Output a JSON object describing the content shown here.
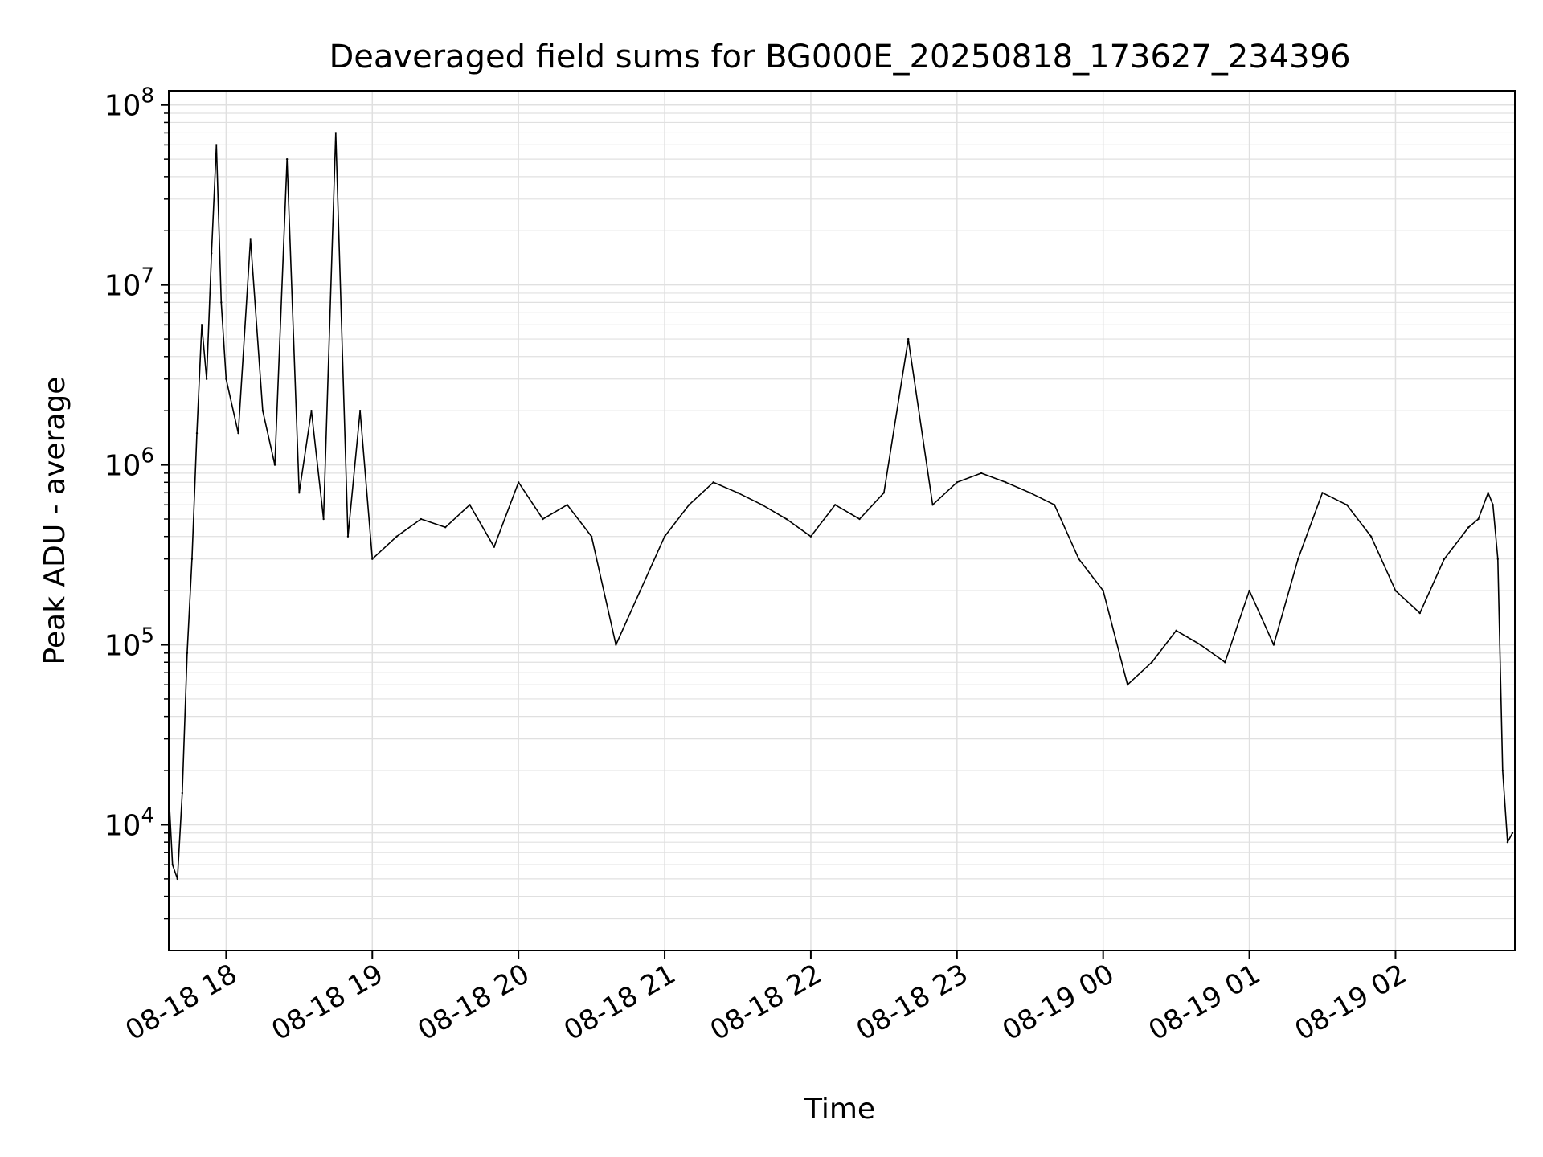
{
  "chart_data": {
    "type": "line",
    "title": "Deaveraged field sums for BG000E_20250818_173627_234396",
    "xlabel": "Time",
    "ylabel": "Peak ADU - average",
    "yscale": "log",
    "ylim": [
      2000,
      120000000
    ],
    "xlim": [
      "2025-08-18 17:36:27",
      "2025-08-19 02:49:00"
    ],
    "y_ticks": [
      {
        "value": 10000,
        "base": "10",
        "exp": "4"
      },
      {
        "value": 100000,
        "base": "10",
        "exp": "5"
      },
      {
        "value": 1000000,
        "base": "10",
        "exp": "6"
      },
      {
        "value": 10000000,
        "base": "10",
        "exp": "7"
      },
      {
        "value": 100000000,
        "base": "10",
        "exp": "8"
      }
    ],
    "x_ticks": [
      {
        "value": "2025-08-18 18:00",
        "label": "08-18 18"
      },
      {
        "value": "2025-08-18 19:00",
        "label": "08-18 19"
      },
      {
        "value": "2025-08-18 20:00",
        "label": "08-18 20"
      },
      {
        "value": "2025-08-18 21:00",
        "label": "08-18 21"
      },
      {
        "value": "2025-08-18 22:00",
        "label": "08-18 22"
      },
      {
        "value": "2025-08-18 23:00",
        "label": "08-18 23"
      },
      {
        "value": "2025-08-19 00:00",
        "label": "08-19 00"
      },
      {
        "value": "2025-08-19 01:00",
        "label": "08-19 01"
      },
      {
        "value": "2025-08-19 02:00",
        "label": "08-19 02"
      }
    ],
    "grid": true,
    "line_color": "#000000",
    "grid_color": "#e0e0e0",
    "series": [
      {
        "x": [
          "2025-08-18 17:36",
          "2025-08-18 17:38",
          "2025-08-18 17:40",
          "2025-08-18 17:42",
          "2025-08-18 17:44",
          "2025-08-18 17:46",
          "2025-08-18 17:48",
          "2025-08-18 17:50",
          "2025-08-18 17:52",
          "2025-08-18 17:54",
          "2025-08-18 17:56",
          "2025-08-18 17:58",
          "2025-08-18 18:00",
          "2025-08-18 18:05",
          "2025-08-18 18:10",
          "2025-08-18 18:15",
          "2025-08-18 18:20",
          "2025-08-18 18:25",
          "2025-08-18 18:30",
          "2025-08-18 18:35",
          "2025-08-18 18:40",
          "2025-08-18 18:45",
          "2025-08-18 18:50",
          "2025-08-18 18:55",
          "2025-08-18 19:00",
          "2025-08-18 19:10",
          "2025-08-18 19:20",
          "2025-08-18 19:30",
          "2025-08-18 19:40",
          "2025-08-18 19:50",
          "2025-08-18 20:00",
          "2025-08-18 20:10",
          "2025-08-18 20:20",
          "2025-08-18 20:30",
          "2025-08-18 20:40",
          "2025-08-18 20:50",
          "2025-08-18 21:00",
          "2025-08-18 21:10",
          "2025-08-18 21:20",
          "2025-08-18 21:30",
          "2025-08-18 21:40",
          "2025-08-18 21:50",
          "2025-08-18 22:00",
          "2025-08-18 22:10",
          "2025-08-18 22:20",
          "2025-08-18 22:30",
          "2025-08-18 22:40",
          "2025-08-18 22:50",
          "2025-08-18 23:00",
          "2025-08-18 23:10",
          "2025-08-18 23:20",
          "2025-08-18 23:30",
          "2025-08-18 23:40",
          "2025-08-18 23:50",
          "2025-08-19 00:00",
          "2025-08-19 00:10",
          "2025-08-19 00:20",
          "2025-08-19 00:30",
          "2025-08-19 00:40",
          "2025-08-19 00:50",
          "2025-08-19 01:00",
          "2025-08-19 01:10",
          "2025-08-19 01:20",
          "2025-08-19 01:30",
          "2025-08-19 01:40",
          "2025-08-19 01:50",
          "2025-08-19 02:00",
          "2025-08-19 02:10",
          "2025-08-19 02:20",
          "2025-08-19 02:30",
          "2025-08-19 02:34",
          "2025-08-19 02:38",
          "2025-08-19 02:40",
          "2025-08-19 02:42",
          "2025-08-19 02:44",
          "2025-08-19 02:46",
          "2025-08-19 02:48"
        ],
        "y": [
          20000,
          6000,
          5000,
          15000,
          90000,
          300000,
          1500000,
          6000000,
          3000000,
          15000000,
          60000000,
          8000000,
          3000000,
          1500000,
          18000000,
          2000000,
          1000000,
          50000000,
          700000,
          2000000,
          500000,
          70000000,
          400000,
          2000000,
          300000,
          400000,
          500000,
          450000,
          600000,
          350000,
          800000,
          500000,
          600000,
          400000,
          100000,
          200000,
          400000,
          600000,
          800000,
          700000,
          600000,
          500000,
          400000,
          600000,
          500000,
          700000,
          5000000,
          600000,
          800000,
          900000,
          800000,
          700000,
          600000,
          300000,
          200000,
          60000,
          80000,
          120000,
          100000,
          80000,
          200000,
          100000,
          300000,
          700000,
          600000,
          400000,
          200000,
          150000,
          300000,
          450000,
          500000,
          700000,
          600000,
          300000,
          20000,
          8000,
          9000
        ]
      }
    ]
  }
}
